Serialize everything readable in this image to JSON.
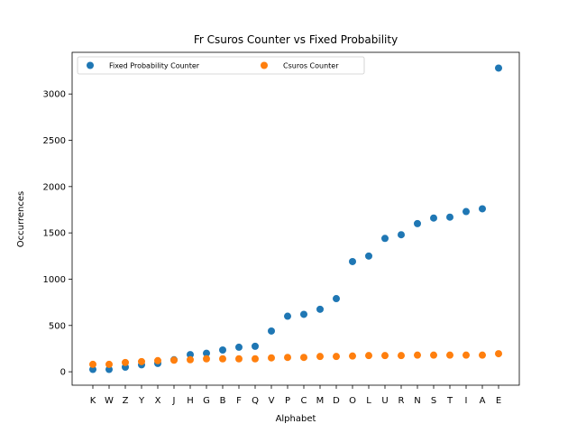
{
  "chart_data": {
    "type": "scatter",
    "title": "Fr Csuros Counter vs Fixed Probability",
    "xlabel": "Alphabet",
    "ylabel": "Occurrences",
    "categories": [
      "K",
      "W",
      "Z",
      "Y",
      "X",
      "J",
      "H",
      "G",
      "B",
      "F",
      "Q",
      "V",
      "P",
      "C",
      "M",
      "D",
      "O",
      "L",
      "U",
      "R",
      "N",
      "S",
      "T",
      "I",
      "A",
      "E"
    ],
    "ylim": [
      -145,
      3450
    ],
    "yticks": [
      0,
      500,
      1000,
      1500,
      2000,
      2500,
      3000
    ],
    "grid": false,
    "legend_position": "top-left",
    "series": [
      {
        "name": "Fixed Probability Counter",
        "color": "#1f77b4",
        "values": [
          25,
          25,
          50,
          75,
          90,
          130,
          185,
          200,
          235,
          265,
          275,
          440,
          600,
          620,
          675,
          790,
          1190,
          1250,
          1440,
          1480,
          1600,
          1660,
          1670,
          1730,
          1760,
          3280
        ]
      },
      {
        "name": "Csuros Counter",
        "color": "#ff7f0e",
        "values": [
          80,
          80,
          100,
          110,
          120,
          125,
          130,
          140,
          140,
          140,
          140,
          150,
          155,
          155,
          165,
          165,
          170,
          175,
          175,
          175,
          180,
          180,
          180,
          180,
          180,
          195
        ]
      }
    ]
  }
}
